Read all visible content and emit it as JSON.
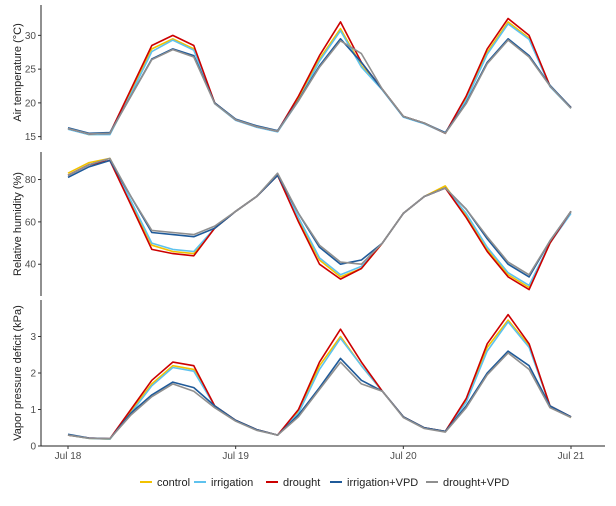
{
  "chart_data": [
    {
      "type": "line",
      "ylabel": "Air temperature (°C)",
      "yticks": [
        15,
        20,
        25,
        30
      ],
      "ylim": [
        14.5,
        34.5
      ],
      "x_hours": [
        0,
        3,
        6,
        9,
        12,
        15,
        18,
        21,
        24,
        27,
        30,
        33,
        36,
        39,
        42,
        45,
        48,
        51,
        54,
        57,
        60,
        63,
        66,
        69,
        72
      ],
      "series": [
        {
          "name": "control",
          "values": [
            16.2,
            15.3,
            15.4,
            21.6,
            28,
            29.5,
            28,
            20,
            17.5,
            16.5,
            15.8,
            20.6,
            26.5,
            31,
            25.5,
            22,
            18,
            17,
            15.5,
            20.6,
            27.5,
            32,
            29.6,
            22.5,
            19.3
          ]
        },
        {
          "name": "irrigation",
          "values": [
            16.1,
            15.3,
            15.3,
            21.3,
            27.6,
            29.3,
            27.8,
            19.9,
            17.4,
            16.4,
            15.7,
            20.3,
            26.2,
            30.7,
            25.3,
            21.9,
            17.9,
            16.9,
            15.5,
            20.4,
            27.2,
            31.7,
            29.4,
            22.4,
            19.2
          ]
        },
        {
          "name": "drought",
          "values": [
            16.2,
            15.4,
            15.5,
            22,
            28.5,
            30,
            28.5,
            20,
            17.5,
            16.5,
            15.8,
            21,
            27,
            32,
            26,
            22,
            18,
            17,
            15.5,
            21,
            28,
            32.5,
            30,
            22.5,
            19.3
          ]
        },
        {
          "name": "irrigation+VPD",
          "values": [
            16.3,
            15.5,
            15.6,
            21,
            26.5,
            28,
            27,
            20,
            17.6,
            16.6,
            15.9,
            20.4,
            25.5,
            29.5,
            26,
            22,
            18,
            17,
            15.6,
            20,
            26,
            29.5,
            27,
            22.6,
            19.3
          ]
        },
        {
          "name": "drought+VPD",
          "values": [
            16.2,
            15.4,
            15.5,
            21,
            26.4,
            27.9,
            26.8,
            19.9,
            17.5,
            16.5,
            15.8,
            20.3,
            25.3,
            29.2,
            27.3,
            22,
            18,
            17,
            15.5,
            19.9,
            25.8,
            29.3,
            26.8,
            22.5,
            19.2
          ]
        }
      ]
    },
    {
      "type": "line",
      "ylabel": "Relative humidity (%)",
      "yticks": [
        40,
        60,
        80
      ],
      "ylim": [
        25,
        93
      ],
      "x_hours": [
        0,
        3,
        6,
        9,
        12,
        15,
        18,
        21,
        24,
        27,
        30,
        33,
        36,
        39,
        42,
        45,
        48,
        51,
        54,
        57,
        60,
        63,
        66,
        69,
        72
      ],
      "series": [
        {
          "name": "control",
          "values": [
            83,
            88,
            90,
            69,
            49,
            46,
            45,
            57,
            65,
            72,
            82,
            61,
            42,
            34,
            38,
            50,
            64,
            72,
            77,
            63,
            47,
            35,
            29,
            50,
            65
          ]
        },
        {
          "name": "irrigation",
          "values": [
            82,
            87,
            89,
            70,
            50,
            47,
            46,
            57,
            65,
            72,
            82,
            62,
            43,
            35,
            39,
            50,
            64,
            72,
            76,
            64,
            48,
            36,
            30,
            50,
            64
          ]
        },
        {
          "name": "drought",
          "values": [
            82,
            87,
            89,
            68,
            47,
            45,
            44,
            57,
            65,
            72,
            82,
            60,
            40,
            33,
            38,
            50,
            64,
            72,
            76,
            62,
            46,
            34,
            28,
            50,
            65
          ]
        },
        {
          "name": "irrigation+VPD",
          "values": [
            81,
            86,
            89,
            72,
            55,
            54,
            53,
            57,
            65,
            72,
            82,
            64,
            48,
            40,
            42,
            50,
            64,
            72,
            76,
            66,
            52,
            40,
            34,
            51,
            65
          ]
        },
        {
          "name": "drought+VPD",
          "values": [
            82,
            87,
            90,
            72,
            56,
            55,
            54,
            58,
            65,
            72,
            83,
            64,
            49,
            41,
            40,
            50,
            64,
            72,
            76,
            66,
            53,
            41,
            35,
            51,
            65
          ]
        }
      ]
    },
    {
      "type": "line",
      "ylabel": "Vapor pressure deficit (kPa)",
      "yticks": [
        0,
        1,
        2,
        3
      ],
      "ylim": [
        0,
        4
      ],
      "x_hours": [
        0,
        3,
        6,
        9,
        12,
        15,
        18,
        21,
        24,
        27,
        30,
        33,
        36,
        39,
        42,
        45,
        48,
        51,
        54,
        57,
        60,
        63,
        66,
        69,
        72
      ],
      "xticks": [
        "Jul 18",
        "Jul 19",
        "Jul 20",
        "Jul 21"
      ],
      "series": [
        {
          "name": "control",
          "values": [
            0.3,
            0.21,
            0.19,
            0.95,
            1.7,
            2.2,
            2.1,
            1.1,
            0.7,
            0.45,
            0.3,
            0.95,
            2.2,
            3.0,
            2.2,
            1.5,
            0.8,
            0.5,
            0.4,
            1.25,
            2.7,
            3.45,
            2.75,
            1.1,
            0.78
          ]
        },
        {
          "name": "irrigation",
          "values": [
            0.3,
            0.21,
            0.19,
            0.9,
            1.65,
            2.15,
            2.05,
            1.1,
            0.7,
            0.45,
            0.3,
            0.9,
            2.1,
            2.95,
            2.2,
            1.5,
            0.8,
            0.5,
            0.4,
            1.2,
            2.6,
            3.4,
            2.7,
            1.1,
            0.8
          ]
        },
        {
          "name": "drought",
          "values": [
            0.3,
            0.22,
            0.2,
            1.0,
            1.8,
            2.3,
            2.2,
            1.1,
            0.7,
            0.45,
            0.3,
            1.0,
            2.3,
            3.2,
            2.3,
            1.5,
            0.8,
            0.5,
            0.4,
            1.3,
            2.8,
            3.6,
            2.8,
            1.1,
            0.8
          ]
        },
        {
          "name": "irrigation+VPD",
          "values": [
            0.32,
            0.22,
            0.2,
            0.9,
            1.4,
            1.75,
            1.6,
            1.1,
            0.7,
            0.45,
            0.3,
            0.85,
            1.6,
            2.4,
            1.8,
            1.5,
            0.8,
            0.5,
            0.4,
            1.1,
            2.0,
            2.6,
            2.2,
            1.1,
            0.8
          ]
        },
        {
          "name": "drought+VPD",
          "values": [
            0.3,
            0.21,
            0.2,
            0.85,
            1.35,
            1.7,
            1.5,
            1.05,
            0.68,
            0.43,
            0.3,
            0.8,
            1.55,
            2.3,
            1.7,
            1.5,
            0.78,
            0.48,
            0.38,
            1.05,
            1.95,
            2.55,
            2.1,
            1.05,
            0.78
          ]
        }
      ]
    }
  ],
  "legend": [
    {
      "label": "control",
      "color": "#f2c200"
    },
    {
      "label": "irrigation",
      "color": "#5ec2ee"
    },
    {
      "label": "drought",
      "color": "#cc0000"
    },
    {
      "label": "irrigation+VPD",
      "color": "#1f5a99"
    },
    {
      "label": "drought+VPD",
      "color": "#8f8f8f"
    }
  ],
  "legend_placement": "bottom"
}
